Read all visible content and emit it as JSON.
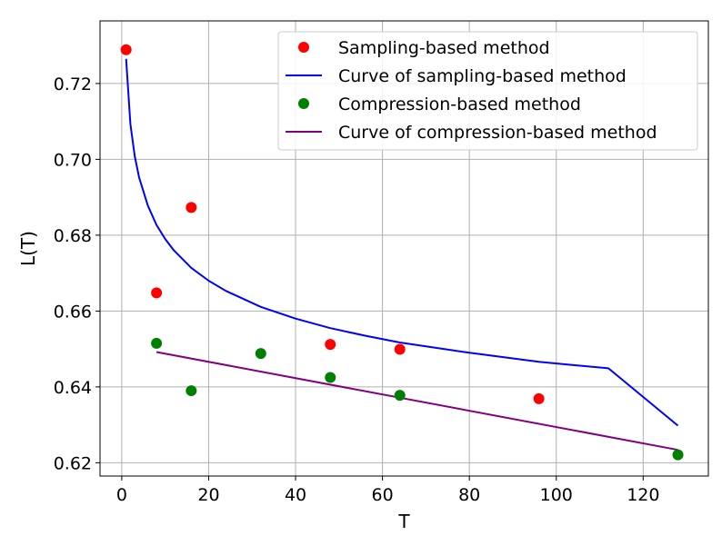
{
  "chart_data": {
    "type": "scatter",
    "xlabel": "T",
    "ylabel": "L(T)",
    "xlim": [
      -5,
      135
    ],
    "ylim": [
      0.6165,
      0.7365
    ],
    "xticks": [
      0,
      20,
      40,
      60,
      80,
      100,
      120
    ],
    "yticks": [
      0.62,
      0.64,
      0.66,
      0.68,
      0.7,
      0.72
    ],
    "xtick_labels": [
      "0",
      "20",
      "40",
      "60",
      "80",
      "100",
      "120"
    ],
    "ytick_labels": [
      "0.62",
      "0.64",
      "0.66",
      "0.68",
      "0.70",
      "0.72"
    ],
    "grid": true,
    "legend_position": "top-right",
    "series": [
      {
        "name": "Sampling-based method",
        "kind": "scatter",
        "color": "#ff0000",
        "x": [
          1,
          8,
          16,
          48,
          64,
          96
        ],
        "y": [
          0.7289,
          0.6648,
          0.6873,
          0.6512,
          0.6499,
          0.6369
        ]
      },
      {
        "name": "Curve of sampling-based method",
        "kind": "line",
        "color": "#0000ff",
        "x": [
          1,
          2,
          3,
          4,
          6,
          8,
          10,
          12,
          16,
          20,
          24,
          32,
          40,
          48,
          56,
          64,
          80,
          96,
          112,
          128
        ],
        "y": [
          0.7265,
          0.7093,
          0.7008,
          0.6952,
          0.6878,
          0.6827,
          0.679,
          0.676,
          0.6714,
          0.668,
          0.6653,
          0.6611,
          0.658,
          0.6555,
          0.6535,
          0.6517,
          0.649,
          0.6466,
          0.6449,
          0.6298
        ]
      },
      {
        "name": "Compression-based method",
        "kind": "scatter",
        "color": "#008000",
        "x": [
          8,
          16,
          32,
          48,
          64,
          128
        ],
        "y": [
          0.6515,
          0.639,
          0.6488,
          0.6425,
          0.6378,
          0.6221
        ]
      },
      {
        "name": "Curve of compression-based method",
        "kind": "line",
        "color": "#800080",
        "x": [
          8,
          128
        ],
        "y": [
          0.6492,
          0.6234
        ]
      }
    ]
  }
}
